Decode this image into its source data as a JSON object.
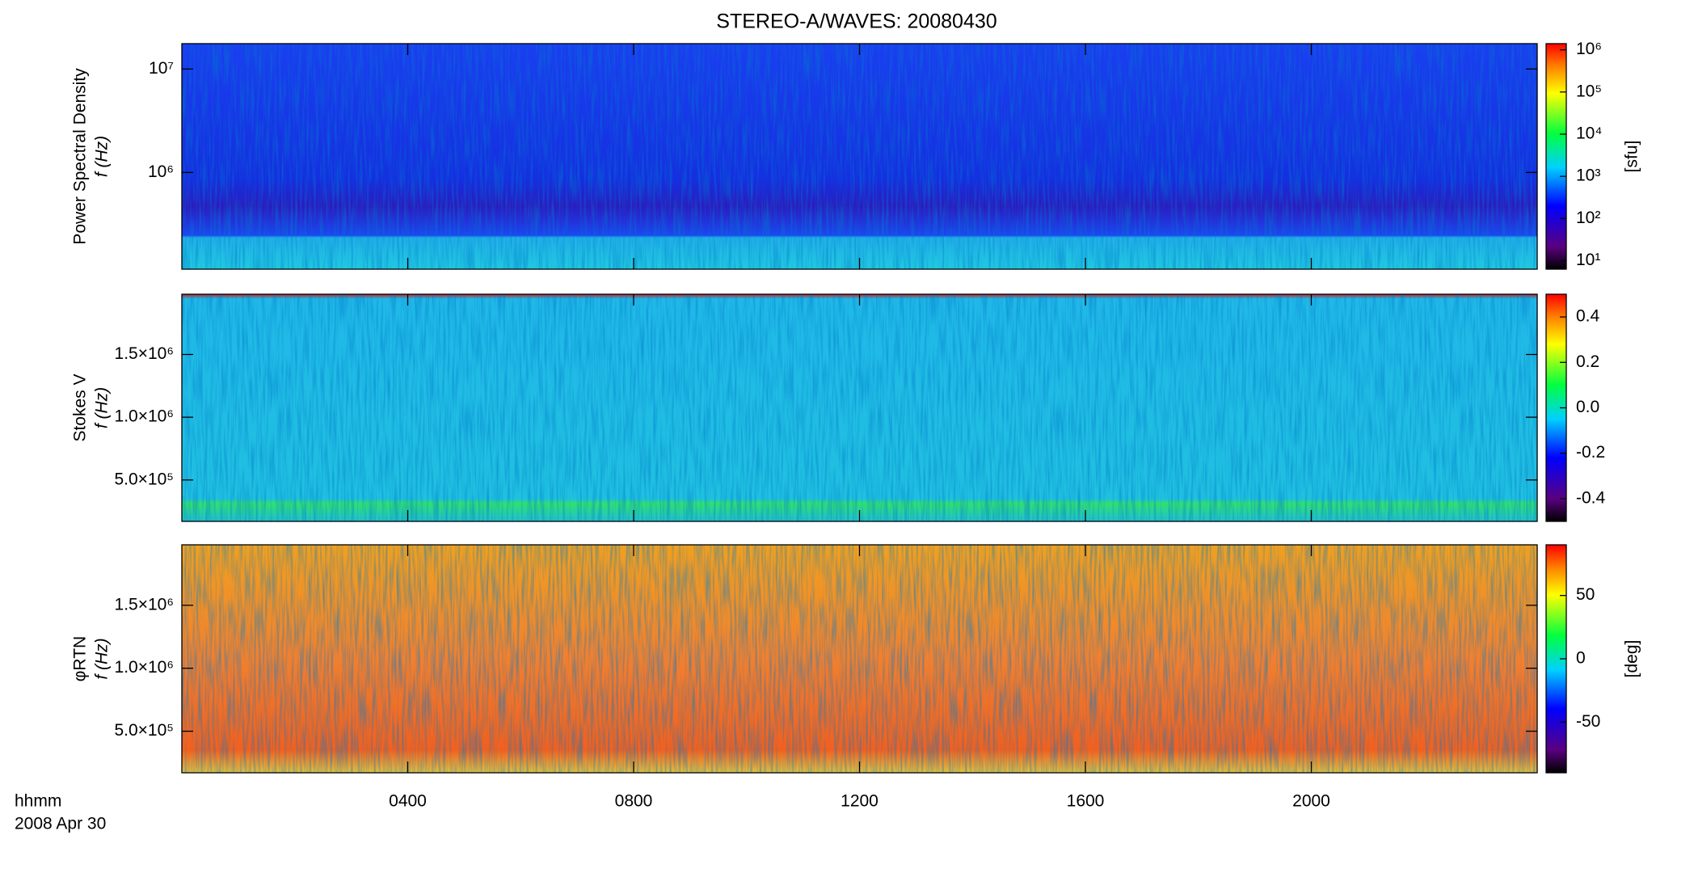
{
  "title": "STEREO-A/WAVES: 20080430",
  "chart_data": [
    {
      "type": "spectrogram",
      "ylabel": [
        "Power Spectral Density",
        "f (Hz)"
      ],
      "ylog": true,
      "ylim": [
        116000,
        17600000
      ],
      "yticks": [
        {
          "value": 1000000,
          "label": "10⁶"
        },
        {
          "value": 10000000,
          "label": "10⁷"
        }
      ],
      "colorbar": {
        "label": "[sfu]",
        "log": true,
        "lim": [
          6.3,
          1400000
        ],
        "ticks": [
          {
            "value": 10,
            "label": "10¹"
          },
          {
            "value": 100,
            "label": "10²"
          },
          {
            "value": 1000,
            "label": "10³"
          },
          {
            "value": 10000,
            "label": "10⁴"
          },
          {
            "value": 100000,
            "label": "10⁵"
          },
          {
            "value": 1000000,
            "label": "10⁶"
          }
        ]
      }
    },
    {
      "type": "spectrogram",
      "ylabel": [
        "Stokes V",
        "f (Hz)"
      ],
      "ylog": false,
      "ylim": [
        170000,
        1980000
      ],
      "yticks": [
        {
          "value": 500000,
          "label": "5.0×10⁵"
        },
        {
          "value": 1000000,
          "label": "1.0×10⁶"
        },
        {
          "value": 1500000,
          "label": "1.5×10⁶"
        }
      ],
      "colorbar": {
        "label": "",
        "log": false,
        "lim": [
          -0.5,
          0.5
        ],
        "ticks": [
          -0.4,
          -0.2,
          {
            "value": 0,
            "label": "0.0"
          },
          0.2,
          0.4
        ]
      }
    },
    {
      "type": "spectrogram",
      "ylabel": [
        "φRTN",
        "f (Hz)"
      ],
      "ylog": false,
      "ylim": [
        170000,
        1980000
      ],
      "yticks": [
        {
          "value": 500000,
          "label": "5.0×10⁵"
        },
        {
          "value": 1000000,
          "label": "1.0×10⁶"
        },
        {
          "value": 1500000,
          "label": "1.5×10⁶"
        }
      ],
      "colorbar": {
        "label": "[deg]",
        "log": false,
        "lim": [
          -90,
          90
        ],
        "ticks": [
          -50,
          0,
          50
        ]
      },
      "xlim": [
        0,
        24
      ],
      "xticks": [
        {
          "value": 4,
          "label": "0400"
        },
        {
          "value": 8,
          "label": "0800"
        },
        {
          "value": 12,
          "label": "1200"
        },
        {
          "value": 16,
          "label": "1600"
        },
        {
          "value": 20,
          "label": "2000"
        }
      ],
      "xtitle": "hhmm",
      "date": "2008 Apr 30"
    }
  ]
}
